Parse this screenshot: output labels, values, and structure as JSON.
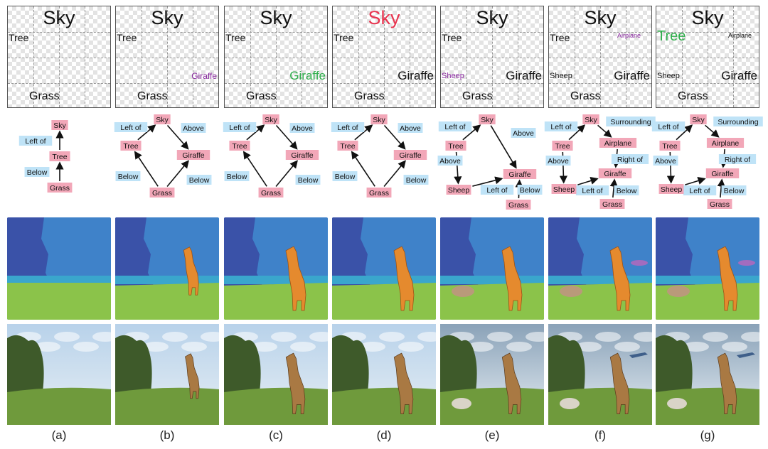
{
  "colors": {
    "node_fill": "#f2a7b8",
    "edge_fill": "#bfe3f7",
    "accent_red": "#e8344f",
    "accent_green": "#2fae4c",
    "accent_purple": "#8a2aa0",
    "seg_sky": "#3f82c9",
    "seg_tree": "#3a52a8",
    "seg_grass": "#8bc34a",
    "seg_giraffe": "#e58a2e",
    "seg_sheep": "#b99a7a",
    "seg_airplane": "#a26cbf"
  },
  "panels": [
    {
      "caption": "(a)",
      "layout_words": [
        {
          "text": "Sky",
          "emphasis": "none"
        },
        {
          "text": "Tree",
          "emphasis": "none"
        },
        {
          "text": "Grass",
          "emphasis": "none"
        }
      ],
      "graph": {
        "nodes": [
          "Sky",
          "Tree",
          "Grass"
        ],
        "edges": [
          {
            "label": "Left of",
            "from": "Tree",
            "to": "Sky"
          },
          {
            "label": "Below",
            "from": "Grass",
            "to": "Tree"
          }
        ]
      }
    },
    {
      "caption": "(b)",
      "layout_words": [
        {
          "text": "Sky",
          "emphasis": "none"
        },
        {
          "text": "Tree",
          "emphasis": "none"
        },
        {
          "text": "Giraffe",
          "emphasis": "new"
        },
        {
          "text": "Grass",
          "emphasis": "none"
        }
      ],
      "graph": {
        "nodes": [
          "Sky",
          "Tree",
          "Giraffe",
          "Grass"
        ],
        "edges": [
          {
            "label": "Left of",
            "from": "Tree",
            "to": "Sky"
          },
          {
            "label": "Above",
            "from": "Sky",
            "to": "Giraffe"
          },
          {
            "label": "Below",
            "from": "Grass",
            "to": "Tree"
          },
          {
            "label": "Below",
            "from": "Grass",
            "to": "Giraffe"
          }
        ]
      }
    },
    {
      "caption": "(c)",
      "layout_words": [
        {
          "text": "Sky",
          "emphasis": "none"
        },
        {
          "text": "Tree",
          "emphasis": "none"
        },
        {
          "text": "Giraffe",
          "emphasis": "resized"
        },
        {
          "text": "Grass",
          "emphasis": "none"
        }
      ],
      "graph": {
        "nodes": [
          "Sky",
          "Tree",
          "Giraffe",
          "Grass"
        ],
        "edges": [
          {
            "label": "Left of",
            "from": "Tree",
            "to": "Sky"
          },
          {
            "label": "Above",
            "from": "Sky",
            "to": "Giraffe"
          },
          {
            "label": "Below",
            "from": "Grass",
            "to": "Tree"
          },
          {
            "label": "Below",
            "from": "Grass",
            "to": "Giraffe"
          }
        ]
      }
    },
    {
      "caption": "(d)",
      "layout_words": [
        {
          "text": "Sky",
          "emphasis": "highlight"
        },
        {
          "text": "Tree",
          "emphasis": "none"
        },
        {
          "text": "Giraffe",
          "emphasis": "none"
        },
        {
          "text": "Grass",
          "emphasis": "none"
        }
      ],
      "graph": {
        "nodes": [
          "Sky",
          "Tree",
          "Giraffe",
          "Grass"
        ],
        "edges": [
          {
            "label": "Left of",
            "from": "Tree",
            "to": "Sky"
          },
          {
            "label": "Above",
            "from": "Sky",
            "to": "Giraffe"
          },
          {
            "label": "Below",
            "from": "Grass",
            "to": "Tree"
          },
          {
            "label": "Below",
            "from": "Grass",
            "to": "Giraffe"
          }
        ]
      }
    },
    {
      "caption": "(e)",
      "layout_words": [
        {
          "text": "Sky",
          "emphasis": "none"
        },
        {
          "text": "Tree",
          "emphasis": "none"
        },
        {
          "text": "Sheep",
          "emphasis": "new"
        },
        {
          "text": "Giraffe",
          "emphasis": "none"
        },
        {
          "text": "Grass",
          "emphasis": "none"
        }
      ],
      "graph": {
        "nodes": [
          "Sky",
          "Tree",
          "Giraffe",
          "Sheep",
          "Grass"
        ],
        "edges": [
          {
            "label": "Left of",
            "from": "Tree",
            "to": "Sky"
          },
          {
            "label": "Above",
            "from": "Sky",
            "to": "Giraffe"
          },
          {
            "label": "Above",
            "from": "Tree",
            "to": "Sheep"
          },
          {
            "label": "Left of",
            "from": "Sheep",
            "to": "Giraffe"
          },
          {
            "label": "Below",
            "from": "Grass",
            "to": "Giraffe"
          }
        ]
      }
    },
    {
      "caption": "(f)",
      "layout_words": [
        {
          "text": "Sky",
          "emphasis": "none"
        },
        {
          "text": "Tree",
          "emphasis": "none"
        },
        {
          "text": "Airplane",
          "emphasis": "new"
        },
        {
          "text": "Sheep",
          "emphasis": "none"
        },
        {
          "text": "Giraffe",
          "emphasis": "none"
        },
        {
          "text": "Grass",
          "emphasis": "none"
        }
      ],
      "graph": {
        "nodes": [
          "Sky",
          "Tree",
          "Airplane",
          "Giraffe",
          "Sheep",
          "Grass"
        ],
        "edges": [
          {
            "label": "Left of",
            "from": "Tree",
            "to": "Sky"
          },
          {
            "label": "Surrounding",
            "from": "Sky",
            "to": "Airplane"
          },
          {
            "label": "Right of",
            "from": "Airplane",
            "to": "Giraffe"
          },
          {
            "label": "Above",
            "from": "Tree",
            "to": "Sheep"
          },
          {
            "label": "Left of",
            "from": "Sheep",
            "to": "Giraffe"
          },
          {
            "label": "Below",
            "from": "Grass",
            "to": "Giraffe"
          }
        ]
      }
    },
    {
      "caption": "(g)",
      "layout_words": [
        {
          "text": "Sky",
          "emphasis": "none"
        },
        {
          "text": "Tree",
          "emphasis": "resized"
        },
        {
          "text": "Airplane",
          "emphasis": "none"
        },
        {
          "text": "Sheep",
          "emphasis": "none"
        },
        {
          "text": "Giraffe",
          "emphasis": "none"
        },
        {
          "text": "Grass",
          "emphasis": "none"
        }
      ],
      "graph": {
        "nodes": [
          "Sky",
          "Tree",
          "Airplane",
          "Giraffe",
          "Sheep",
          "Grass"
        ],
        "edges": [
          {
            "label": "Left of",
            "from": "Tree",
            "to": "Sky"
          },
          {
            "label": "Surrounding",
            "from": "Sky",
            "to": "Airplane"
          },
          {
            "label": "Right of",
            "from": "Airplane",
            "to": "Giraffe"
          },
          {
            "label": "Above",
            "from": "Tree",
            "to": "Sheep"
          },
          {
            "label": "Left of",
            "from": "Sheep",
            "to": "Giraffe"
          },
          {
            "label": "Below",
            "from": "Grass",
            "to": "Giraffe"
          }
        ]
      }
    }
  ]
}
